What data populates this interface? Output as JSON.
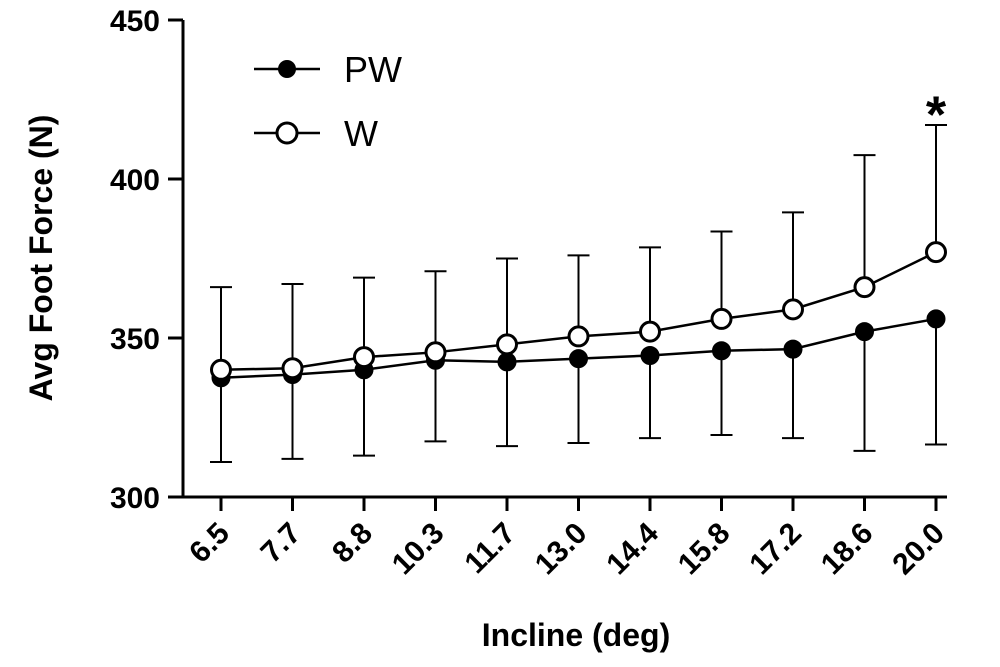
{
  "chart_data": {
    "type": "line",
    "title": "",
    "xlabel": "Incline (deg)",
    "ylabel": "Avg Foot Force (N)",
    "ylim": [
      300,
      450
    ],
    "yticks": [
      300,
      350,
      400,
      450
    ],
    "categories": [
      "6.5",
      "7.7",
      "8.8",
      "10.3",
      "11.7",
      "13.0",
      "14.4",
      "15.8",
      "17.2",
      "18.6",
      "20.0"
    ],
    "series": [
      {
        "name": "PW",
        "marker": "filled-circle",
        "values": [
          337.5,
          338.5,
          340,
          343,
          342.5,
          343.5,
          344.5,
          346,
          346.5,
          352,
          356
        ],
        "err_low": [
          311,
          312,
          313,
          317.5,
          316,
          317,
          318.5,
          319.5,
          318.5,
          314.5,
          316.5
        ]
      },
      {
        "name": "W",
        "marker": "open-circle",
        "values": [
          340,
          340.5,
          344,
          345.5,
          348,
          350.5,
          352,
          356,
          359,
          366,
          377
        ],
        "err_high": [
          366,
          367,
          369,
          371,
          375,
          376,
          378.5,
          383.5,
          389.5,
          407.5,
          417
        ]
      }
    ],
    "legend": {
      "position": "top-left",
      "entries": [
        "PW",
        "W"
      ]
    },
    "annotations": [
      {
        "text": "*",
        "category": "20.0",
        "y": 426
      }
    ]
  }
}
